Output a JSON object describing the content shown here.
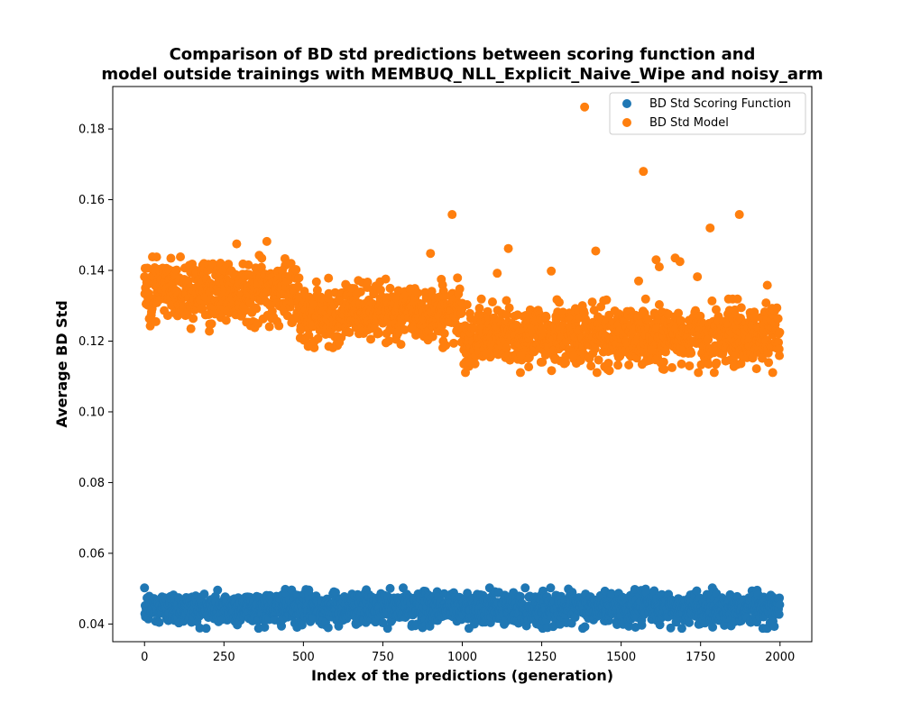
{
  "chart_data": {
    "type": "scatter",
    "title_lines": [
      "Comparison of BD std predictions between scoring function and",
      "model outside trainings with MEMBUQ_NLL_Explicit_Naive_Wipe and noisy_arm"
    ],
    "xlabel": "Index of the predictions (generation)",
    "ylabel": "Average BD Std",
    "xlim": [
      -100,
      2100
    ],
    "ylim": [
      0.035,
      0.192
    ],
    "xticks": [
      0,
      250,
      500,
      750,
      1000,
      1250,
      1500,
      1750,
      2000
    ],
    "yticks": [
      0.04,
      0.06,
      0.08,
      0.1,
      0.12,
      0.14,
      0.16,
      0.18
    ],
    "ytick_labels": [
      "0.04",
      "0.06",
      "0.08",
      "0.10",
      "0.12",
      "0.14",
      "0.16",
      "0.18"
    ],
    "legend_position": "top-right",
    "grid": false,
    "n_points": 2000,
    "series": [
      {
        "name": "BD Std Scoring Function",
        "color": "#1f77b4",
        "segments": [
          {
            "x_start": 0,
            "x_end": 2000,
            "mean": 0.0445,
            "spread": 0.0022
          }
        ],
        "outliers": []
      },
      {
        "name": "BD Std Model",
        "color": "#ff7f0e",
        "segments": [
          {
            "x_start": 0,
            "x_end": 480,
            "mean": 0.1345,
            "spread": 0.0045
          },
          {
            "x_start": 480,
            "x_end": 1000,
            "mean": 0.128,
            "spread": 0.0038
          },
          {
            "x_start": 1000,
            "x_end": 2000,
            "mean": 0.1215,
            "spread": 0.004
          }
        ],
        "outliers": [
          {
            "x": 1385,
            "y": 0.1862
          },
          {
            "x": 1570,
            "y": 0.168
          },
          {
            "x": 1872,
            "y": 0.1558
          },
          {
            "x": 968,
            "y": 0.1558
          },
          {
            "x": 1780,
            "y": 0.152
          },
          {
            "x": 900,
            "y": 0.1448
          },
          {
            "x": 1420,
            "y": 0.1455
          },
          {
            "x": 1145,
            "y": 0.1462
          },
          {
            "x": 385,
            "y": 0.1482
          },
          {
            "x": 290,
            "y": 0.1475
          },
          {
            "x": 38,
            "y": 0.1438
          },
          {
            "x": 1610,
            "y": 0.143
          },
          {
            "x": 1670,
            "y": 0.1435
          },
          {
            "x": 1685,
            "y": 0.1425
          },
          {
            "x": 1620,
            "y": 0.141
          },
          {
            "x": 1280,
            "y": 0.1398
          },
          {
            "x": 1110,
            "y": 0.1392
          },
          {
            "x": 1740,
            "y": 0.1382
          },
          {
            "x": 1555,
            "y": 0.137
          },
          {
            "x": 1960,
            "y": 0.1358
          },
          {
            "x": 1660,
            "y": 0.1125
          },
          {
            "x": 1635,
            "y": 0.112
          },
          {
            "x": 1855,
            "y": 0.1128
          },
          {
            "x": 1490,
            "y": 0.1132
          },
          {
            "x": 1005,
            "y": 0.1135
          },
          {
            "x": 1025,
            "y": 0.114
          },
          {
            "x": 1715,
            "y": 0.113
          },
          {
            "x": 205,
            "y": 0.1248
          },
          {
            "x": 580,
            "y": 0.1185
          },
          {
            "x": 515,
            "y": 0.1185
          },
          {
            "x": 940,
            "y": 0.12
          },
          {
            "x": 1075,
            "y": 0.1165
          },
          {
            "x": 1185,
            "y": 0.116
          },
          {
            "x": 1350,
            "y": 0.1158
          },
          {
            "x": 1595,
            "y": 0.1175
          }
        ]
      }
    ]
  }
}
